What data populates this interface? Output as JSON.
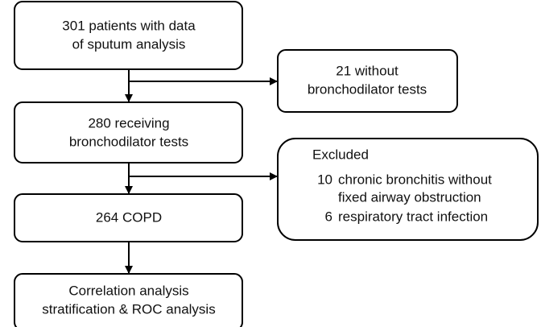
{
  "nodes": [
    {
      "lines": [
        "301 patients with data",
        "of sputum analysis"
      ]
    },
    {
      "lines": [
        "21 without",
        "bronchodilator tests"
      ]
    },
    {
      "lines": [
        "280 receiving",
        "bronchodilator tests"
      ]
    },
    {
      "title": "Excluded",
      "items": [
        {
          "count": 10,
          "lines": [
            "chronic bronchitis without",
            "fixed airway obstruction"
          ]
        },
        {
          "count": 6,
          "lines": [
            "respiratory tract infection"
          ]
        }
      ]
    },
    {
      "lines": [
        "264 COPD"
      ]
    },
    {
      "lines": [
        "Correlation analysis",
        "stratification & ROC analysis"
      ]
    }
  ]
}
